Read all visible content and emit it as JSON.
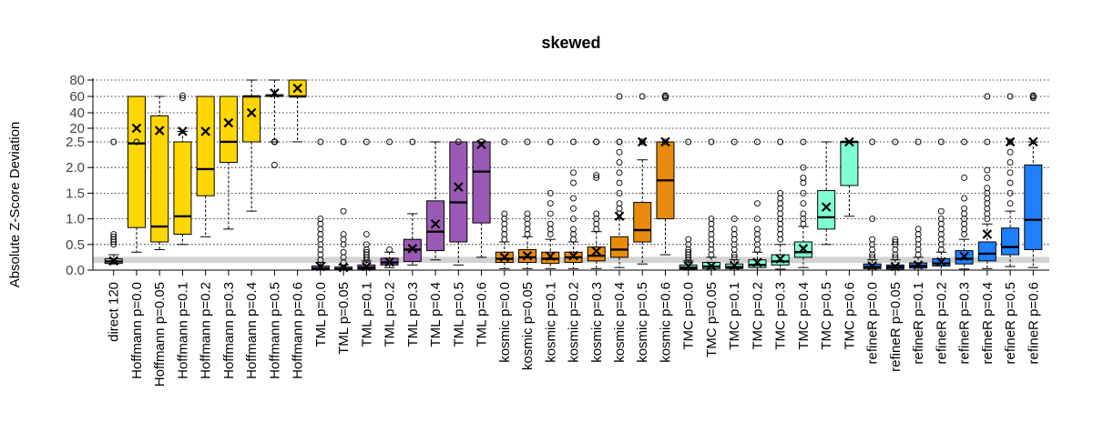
{
  "chart_data": {
    "type": "boxplot",
    "title": "skewed",
    "ylabel": "Absolute Z-Score Deviation",
    "xlabel": "",
    "scale": "piecewise: linear 0–2.5 (lower panel), compressed 2.5–80 (upper panel)",
    "grid": "horizontal dotted lines at each y tick",
    "reference_band": [
      0.14,
      0.26
    ],
    "reference_band_color": "#d3d3d3",
    "yticks": [
      {
        "v": 0.0,
        "label": "0.0"
      },
      {
        "v": 0.5,
        "label": "0.5"
      },
      {
        "v": 1.0,
        "label": "1.0"
      },
      {
        "v": 1.5,
        "label": "1.5"
      },
      {
        "v": 2.0,
        "label": "2.0"
      },
      {
        "v": 2.5,
        "label": "2.5"
      },
      {
        "v": 20,
        "label": "20"
      },
      {
        "v": 40,
        "label": "40"
      },
      {
        "v": 60,
        "label": "60"
      },
      {
        "v": 80,
        "label": "80"
      }
    ],
    "colors": {
      "direct": "#d3d3d3",
      "Hoffmann": "#ffd700",
      "TML": "#9b59b6",
      "kosmic": "#e88a0c",
      "TMC": "#7fffd4",
      "refineR": "#1e7fff"
    },
    "categories": [
      {
        "label": "direct 120",
        "group": "direct",
        "wl": 0.12,
        "q1": 0.13,
        "med": 0.17,
        "q3": 0.22,
        "wh": 0.3,
        "mean": 0.18,
        "outliers": [
          0.5,
          0.55,
          0.6,
          0.65,
          0.7,
          2.5
        ]
      },
      {
        "label": "Hoffmann p=0.0",
        "group": "Hoffmann",
        "wl": 0.35,
        "q1": 0.83,
        "med": 2.47,
        "q3": 60,
        "wh": 60,
        "mean": 20,
        "outliers": [
          2.5
        ]
      },
      {
        "label": "Hoffmann p=0.05",
        "group": "Hoffmann",
        "wl": 0.4,
        "q1": 0.55,
        "med": 0.85,
        "q3": 36,
        "wh": 60,
        "mean": 17,
        "outliers": []
      },
      {
        "label": "Hoffmann p=0.1",
        "group": "Hoffmann",
        "wl": 0.5,
        "q1": 0.7,
        "med": 1.05,
        "q3": 2.5,
        "wh": 16,
        "mean": 16,
        "outliers": [
          58,
          61
        ]
      },
      {
        "label": "Hoffmann p=0.2",
        "group": "Hoffmann",
        "wl": 0.65,
        "q1": 1.45,
        "med": 1.97,
        "q3": 60,
        "wh": 60,
        "mean": 16,
        "outliers": []
      },
      {
        "label": "Hoffmann p=0.3",
        "group": "Hoffmann",
        "wl": 0.8,
        "q1": 2.1,
        "med": 2.55,
        "q3": 60,
        "wh": 60,
        "mean": 27,
        "outliers": []
      },
      {
        "label": "Hoffmann p=0.4",
        "group": "Hoffmann",
        "wl": 1.15,
        "q1": 2.5,
        "med": 60,
        "q3": 60,
        "wh": 80,
        "mean": 40,
        "outliers": []
      },
      {
        "label": "Hoffmann p=0.5",
        "group": "Hoffmann",
        "wl": 2.5,
        "q1": 60,
        "med": 61,
        "q3": 62,
        "wh": 80,
        "mean": 64,
        "outliers": [
          2.05,
          2.55,
          2.6,
          2.65,
          2.7,
          2.75
        ]
      },
      {
        "label": "Hoffmann p=0.6",
        "group": "Hoffmann",
        "wl": 2.6,
        "q1": 60,
        "med": 60,
        "q3": 80,
        "wh": 80,
        "mean": 70,
        "outliers": []
      },
      {
        "label": "TML p=0.0",
        "group": "TML",
        "wl": 0.0,
        "q1": 0.01,
        "med": 0.03,
        "q3": 0.08,
        "wh": 0.15,
        "mean": 0.07,
        "outliers": [
          0.2,
          0.3,
          0.4,
          0.5,
          0.6,
          0.7,
          0.8,
          0.9,
          1.0,
          2.5
        ]
      },
      {
        "label": "TML p=0.05",
        "group": "TML",
        "wl": 0.0,
        "q1": 0.01,
        "med": 0.02,
        "q3": 0.06,
        "wh": 0.1,
        "mean": 0.05,
        "outliers": [
          0.15,
          0.25,
          0.35,
          0.5,
          0.6,
          0.7,
          1.15,
          2.5
        ]
      },
      {
        "label": "TML p=0.1",
        "group": "TML",
        "wl": 0.0,
        "q1": 0.02,
        "med": 0.05,
        "q3": 0.1,
        "wh": 0.18,
        "mean": 0.07,
        "outliers": [
          0.2,
          0.25,
          0.3,
          0.35,
          0.4,
          0.5,
          0.7,
          2.5
        ]
      },
      {
        "label": "TML p=0.2",
        "group": "TML",
        "wl": 0.05,
        "q1": 0.1,
        "med": 0.15,
        "q3": 0.23,
        "wh": 0.35,
        "mean": 0.16,
        "outliers": [
          0.4,
          2.5
        ]
      },
      {
        "label": "TML p=0.3",
        "group": "TML",
        "wl": 0.1,
        "q1": 0.17,
        "med": 0.4,
        "q3": 0.6,
        "wh": 1.1,
        "mean": 0.42,
        "outliers": [
          2.5
        ]
      },
      {
        "label": "TML p=0.4",
        "group": "TML",
        "wl": 0.2,
        "q1": 0.38,
        "med": 0.75,
        "q3": 1.35,
        "wh": 2.5,
        "mean": 0.9,
        "outliers": []
      },
      {
        "label": "TML p=0.5",
        "group": "TML",
        "wl": 0.1,
        "q1": 0.55,
        "med": 1.32,
        "q3": 2.5,
        "wh": 2.5,
        "mean": 1.62,
        "outliers": [
          2.5
        ]
      },
      {
        "label": "TML p=0.6",
        "group": "TML",
        "wl": 0.25,
        "q1": 0.92,
        "med": 1.92,
        "q3": 2.5,
        "wh": 2.5,
        "mean": 2.45,
        "outliers": [
          2.55,
          2.65,
          2.7
        ]
      },
      {
        "label": "kosmic p=0.0",
        "group": "kosmic",
        "wl": 0.03,
        "q1": 0.15,
        "med": 0.22,
        "q3": 0.35,
        "wh": 0.55,
        "mean": 0.25,
        "outliers": [
          0.6,
          0.7,
          0.8,
          0.9,
          1.0,
          1.1,
          2.5
        ]
      },
      {
        "label": "kosmic p=0.05",
        "group": "kosmic",
        "wl": 0.03,
        "q1": 0.15,
        "med": 0.25,
        "q3": 0.4,
        "wh": 0.65,
        "mean": 0.28,
        "outliers": [
          0.7,
          0.8,
          0.9,
          1.0,
          1.1,
          2.5
        ]
      },
      {
        "label": "kosmic p=0.1",
        "group": "kosmic",
        "wl": 0.03,
        "q1": 0.13,
        "med": 0.22,
        "q3": 0.35,
        "wh": 0.6,
        "mean": 0.27,
        "outliers": [
          0.7,
          0.8,
          0.9,
          1.1,
          1.3,
          1.5,
          2.5
        ]
      },
      {
        "label": "kosmic p=0.2",
        "group": "kosmic",
        "wl": 0.03,
        "q1": 0.15,
        "med": 0.25,
        "q3": 0.35,
        "wh": 0.55,
        "mean": 0.28,
        "outliers": [
          0.6,
          0.7,
          0.8,
          1.0,
          1.2,
          1.4,
          1.7,
          1.9,
          2.5
        ]
      },
      {
        "label": "kosmic p=0.3",
        "group": "kosmic",
        "wl": 0.03,
        "q1": 0.18,
        "med": 0.28,
        "q3": 0.45,
        "wh": 0.75,
        "mean": 0.37,
        "outliers": [
          0.8,
          0.9,
          1.0,
          1.1,
          1.8,
          1.85,
          2.5,
          2.55
        ]
      },
      {
        "label": "kosmic p=0.4",
        "group": "kosmic",
        "wl": 0.05,
        "q1": 0.25,
        "med": 0.4,
        "q3": 0.65,
        "wh": 1.0,
        "mean": 1.05,
        "outliers": [
          1.1,
          1.2,
          1.3,
          1.5,
          1.7,
          1.9,
          2.1,
          2.3,
          2.5,
          2.55,
          60
        ]
      },
      {
        "label": "kosmic p=0.5",
        "group": "kosmic",
        "wl": 0.12,
        "q1": 0.55,
        "med": 0.78,
        "q3": 1.32,
        "wh": 2.15,
        "mean": 2.55,
        "outliers": [
          2.5,
          2.55,
          60
        ]
      },
      {
        "label": "kosmic p=0.6",
        "group": "kosmic",
        "wl": 0.3,
        "q1": 1.0,
        "med": 1.75,
        "q3": 2.5,
        "wh": 2.5,
        "mean": 2.65,
        "outliers": [
          2.6,
          58,
          60,
          61
        ]
      },
      {
        "label": "TMC p=0.0",
        "group": "TMC",
        "wl": 0.0,
        "q1": 0.02,
        "med": 0.05,
        "q3": 0.1,
        "wh": 0.18,
        "mean": 0.08,
        "outliers": [
          0.2,
          0.25,
          0.3,
          0.35,
          0.4,
          0.5,
          0.6,
          2.5
        ]
      },
      {
        "label": "TMC p=0.05",
        "group": "TMC",
        "wl": 0.0,
        "q1": 0.03,
        "med": 0.07,
        "q3": 0.15,
        "wh": 0.25,
        "mean": 0.08,
        "outliers": [
          0.3,
          0.4,
          0.5,
          0.6,
          0.7,
          0.8,
          0.9,
          1.0,
          2.5
        ]
      },
      {
        "label": "TMC p=0.1",
        "group": "TMC",
        "wl": 0.0,
        "q1": 0.03,
        "med": 0.06,
        "q3": 0.12,
        "wh": 0.2,
        "mean": 0.09,
        "outliers": [
          0.25,
          0.3,
          0.4,
          0.5,
          0.6,
          0.7,
          0.8,
          1.0,
          2.5
        ]
      },
      {
        "label": "TMC p=0.2",
        "group": "TMC",
        "wl": 0.0,
        "q1": 0.05,
        "med": 0.1,
        "q3": 0.2,
        "wh": 0.35,
        "mean": 0.15,
        "outliers": [
          0.4,
          0.5,
          0.6,
          0.7,
          0.8,
          1.0,
          1.3,
          2.5
        ]
      },
      {
        "label": "TMC p=0.3",
        "group": "TMC",
        "wl": 0.02,
        "q1": 0.1,
        "med": 0.17,
        "q3": 0.3,
        "wh": 0.5,
        "mean": 0.22,
        "outliers": [
          0.6,
          0.7,
          0.8,
          0.9,
          1.0,
          1.1,
          1.2,
          1.3,
          1.4,
          1.5,
          2.5
        ]
      },
      {
        "label": "TMC p=0.4",
        "group": "TMC",
        "wl": 0.05,
        "q1": 0.25,
        "med": 0.35,
        "q3": 0.55,
        "wh": 0.85,
        "mean": 0.42,
        "outliers": [
          0.9,
          1.0,
          1.1,
          1.3,
          1.5,
          1.7,
          1.8,
          2.0,
          2.5
        ]
      },
      {
        "label": "TMC p=0.5",
        "group": "TMC",
        "wl": 0.5,
        "q1": 0.8,
        "med": 1.03,
        "q3": 1.55,
        "wh": 2.5,
        "mean": 1.23,
        "outliers": []
      },
      {
        "label": "TMC p=0.6",
        "group": "TMC",
        "wl": 1.05,
        "q1": 1.65,
        "med": 2.5,
        "q3": 2.5,
        "wh": 2.5,
        "mean": 2.5,
        "outliers": []
      },
      {
        "label": "refineR p=0.0",
        "group": "refineR",
        "wl": 0.0,
        "q1": 0.03,
        "med": 0.06,
        "q3": 0.12,
        "wh": 0.2,
        "mean": 0.08,
        "outliers": [
          0.25,
          0.3,
          0.4,
          0.5,
          0.6,
          1.0,
          2.5
        ]
      },
      {
        "label": "refineR p=0.05",
        "group": "refineR",
        "wl": 0.0,
        "q1": 0.02,
        "med": 0.06,
        "q3": 0.1,
        "wh": 0.2,
        "mean": 0.07,
        "outliers": [
          0.25,
          0.3,
          0.4,
          0.5,
          0.55,
          0.6,
          2.5
        ]
      },
      {
        "label": "refineR p=0.1",
        "group": "refineR",
        "wl": 0.0,
        "q1": 0.04,
        "med": 0.08,
        "q3": 0.14,
        "wh": 0.25,
        "mean": 0.1,
        "outliers": [
          0.3,
          0.4,
          0.5,
          0.6,
          0.7,
          0.8,
          2.5
        ]
      },
      {
        "label": "refineR p=0.2",
        "group": "refineR",
        "wl": 0.0,
        "q1": 0.08,
        "med": 0.13,
        "q3": 0.22,
        "wh": 0.35,
        "mean": 0.16,
        "outliers": [
          0.4,
          0.5,
          0.6,
          0.7,
          0.8,
          0.9,
          1.0,
          1.15,
          2.5
        ]
      },
      {
        "label": "refineR p=0.3",
        "group": "refineR",
        "wl": 0.02,
        "q1": 0.12,
        "med": 0.22,
        "q3": 0.38,
        "wh": 0.6,
        "mean": 0.27,
        "outliers": [
          0.7,
          0.8,
          0.9,
          1.0,
          1.1,
          1.2,
          1.4,
          1.8,
          2.5
        ]
      },
      {
        "label": "refineR p=0.4",
        "group": "refineR",
        "wl": 0.03,
        "q1": 0.18,
        "med": 0.32,
        "q3": 0.55,
        "wh": 0.9,
        "mean": 0.7,
        "outliers": [
          1.0,
          1.1,
          1.2,
          1.3,
          1.4,
          1.5,
          1.6,
          1.8,
          1.95,
          2.5,
          60
        ]
      },
      {
        "label": "refineR p=0.5",
        "group": "refineR",
        "wl": 0.07,
        "q1": 0.3,
        "med": 0.45,
        "q3": 0.82,
        "wh": 1.15,
        "mean": 2.55,
        "outliers": [
          1.3,
          1.5,
          1.7,
          1.9,
          2.1,
          2.3,
          2.5,
          60
        ]
      },
      {
        "label": "refineR p=0.6",
        "group": "refineR",
        "wl": 0.05,
        "q1": 0.4,
        "med": 0.98,
        "q3": 2.05,
        "wh": 2.5,
        "mean": 2.65,
        "outliers": [
          58,
          60,
          61
        ]
      }
    ]
  }
}
